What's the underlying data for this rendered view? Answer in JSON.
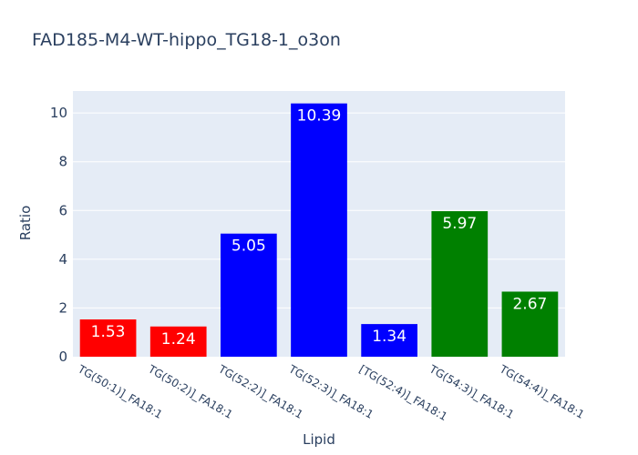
{
  "chart_data": {
    "type": "bar",
    "title": "FAD185-M4-WT-hippo_TG18-1_o3on",
    "xlabel": "Lipid",
    "ylabel": "Ratio",
    "ylim": [
      0,
      10.9
    ],
    "yticks": [
      0,
      2,
      4,
      6,
      8,
      10
    ],
    "grid": true,
    "legend": "none",
    "categories": [
      "TG(50:1)]_FA18:1",
      "TG(50:2)]_FA18:1",
      "TG(52:2)]_FA18:1",
      "TG(52:3)]_FA18:1",
      "[TG(52:4)]_FA18:1",
      "TG(54:3)]_FA18:1",
      "TG(54:4)]_FA18:1"
    ],
    "values": [
      1.53,
      1.24,
      5.05,
      10.39,
      1.34,
      5.97,
      2.67
    ],
    "labels": [
      "1.53",
      "1.24",
      "5.05",
      "10.39",
      "1.34",
      "5.97",
      "2.67"
    ],
    "colors": [
      "#ff0000",
      "#ff0000",
      "#0000ff",
      "#0000ff",
      "#0000ff",
      "#008000",
      "#008000"
    ],
    "plot_background": "#e5ecf6"
  }
}
